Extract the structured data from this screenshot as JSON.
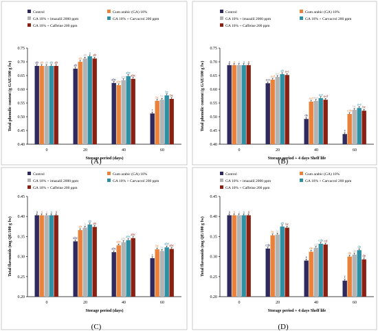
{
  "colors": {
    "Control": "#2e2a5e",
    "Gum arabic (GA) 10%": "#e9823a",
    "GA 10% + imazalil 2000 ppm": "#b3b3b3",
    "GA 10% + Carvacrol 200 ppm": "#2f8fa3",
    "GA 10% + Caffeine 200 ppm": "#8b2012"
  },
  "chart_data": [
    {
      "type": "bar",
      "panel_label": "(A)",
      "ylabel": "Total phenolic content (g GAE/100 g fw)",
      "xlabel": "Storage period (days)",
      "categories": [
        "0",
        "20",
        "40",
        "60"
      ],
      "ylim": [
        0.4,
        0.75
      ],
      "yticks": [
        "0.40",
        "0.45",
        "0.50",
        "0.55",
        "0.60",
        "0.65",
        "0.70",
        "0.75"
      ],
      "legend": [
        "Control",
        "Gum arabic (GA) 10%",
        "GA 10% + imazalil 2000 ppm",
        "GA 10% + Carvacrol 200 ppm",
        "GA 10% + Caffeine 200 ppm"
      ],
      "series": [
        {
          "name": "Control",
          "values": [
            0.685,
            0.675,
            0.623,
            0.512
          ],
          "labels": [
            "ab",
            "ab",
            "abc",
            "c"
          ]
        },
        {
          "name": "Gum arabic (GA) 10%",
          "values": [
            0.685,
            0.7,
            0.615,
            0.558
          ],
          "labels": [
            "ab",
            "ab",
            "abc",
            "bc"
          ]
        },
        {
          "name": "GA 10% + imazalil 2000 ppm",
          "values": [
            0.685,
            0.712,
            0.633,
            0.562
          ],
          "labels": [
            "ab",
            "ab",
            "abc",
            "bc"
          ]
        },
        {
          "name": "GA 10% + Carvacrol 200 ppm",
          "values": [
            0.685,
            0.72,
            0.648,
            0.578
          ],
          "labels": [
            "ab",
            "a",
            "abc",
            "bc"
          ]
        },
        {
          "name": "GA 10% + Caffeine 200 ppm",
          "values": [
            0.685,
            0.712,
            0.638,
            0.565
          ],
          "labels": [
            "ab",
            "ab",
            "abc",
            "bc"
          ]
        }
      ]
    },
    {
      "type": "bar",
      "panel_label": "(B)",
      "ylabel": "Total phenolic content (g GAE/100 g fw)",
      "xlabel": "Storage period + 4 days Shelf life",
      "categories": [
        "0",
        "20",
        "40",
        "60"
      ],
      "ylim": [
        0.4,
        0.75
      ],
      "yticks": [
        "0.40",
        "0.45",
        "0.50",
        "0.55",
        "0.60",
        "0.65",
        "0.70",
        "0.75"
      ],
      "legend": [
        "Control",
        "Gum arabic (GA) 10%",
        "GA 10% + imazalil 2000 ppm",
        "GA 10% + Carvacrol 200 ppm",
        "GA 10% + Caffeine 200 ppm"
      ],
      "series": [
        {
          "name": "Control",
          "values": [
            0.688,
            0.622,
            0.492,
            0.437
          ],
          "labels": [
            "a",
            "a-e",
            "de",
            "e"
          ]
        },
        {
          "name": "Gum arabic (GA) 10%",
          "values": [
            0.688,
            0.635,
            0.555,
            0.51
          ],
          "labels": [
            "a",
            "a-d",
            "a-d",
            "cde"
          ]
        },
        {
          "name": "GA 10% + imazalil 2000 ppm",
          "values": [
            0.688,
            0.645,
            0.558,
            0.525
          ],
          "labels": [
            "a",
            "a-c",
            "a-e",
            "bc"
          ]
        },
        {
          "name": "GA 10% + Carvacrol 200 ppm",
          "values": [
            0.688,
            0.655,
            0.568,
            0.532
          ],
          "labels": [
            "a",
            "ab",
            "a-e",
            "a-e"
          ]
        },
        {
          "name": "GA 10% + Caffeine 200 ppm",
          "values": [
            0.688,
            0.652,
            0.562,
            0.522
          ],
          "labels": [
            "a",
            "a-c",
            "a-d",
            "bc"
          ]
        }
      ]
    },
    {
      "type": "bar",
      "panel_label": "(C)",
      "ylabel": "Total flavonoids (mg QE/100 g fw)",
      "xlabel": "Storage period (days)",
      "categories": [
        "0",
        "20",
        "40",
        "60"
      ],
      "ylim": [
        0.2,
        0.45
      ],
      "yticks": [
        "0.20",
        "0.25",
        "0.30",
        "0.35",
        "0.40",
        "0.45"
      ],
      "legend": [
        "Control",
        "Gum arabic (GA) 10%",
        "GA 10% + imazalil 2000 ppm",
        "GA 10% + Carvacrol 200 ppm",
        "GA 10% + Caffeine 200 ppm"
      ],
      "series": [
        {
          "name": "Control",
          "values": [
            0.403,
            0.338,
            0.311,
            0.296
          ],
          "labels": [
            "a",
            "abc",
            "abc",
            "c"
          ]
        },
        {
          "name": "Gum arabic (GA) 10%",
          "values": [
            0.403,
            0.366,
            0.328,
            0.318
          ],
          "labels": [
            "a",
            "ab",
            "abc",
            "bc"
          ]
        },
        {
          "name": "GA 10% + imazalil 2000 ppm",
          "values": [
            0.403,
            0.372,
            0.336,
            0.314
          ],
          "labels": [
            "a",
            "b",
            "abc",
            "bc"
          ]
        },
        {
          "name": "GA 10% + Carvacrol 200 ppm",
          "values": [
            0.403,
            0.38,
            0.341,
            0.323
          ],
          "labels": [
            "a",
            "ab",
            "abc",
            "abc"
          ]
        },
        {
          "name": "GA 10% + Caffeine 200 ppm",
          "values": [
            0.403,
            0.374,
            0.346,
            0.319
          ],
          "labels": [
            "a",
            "ab",
            "abc",
            "abc"
          ]
        }
      ]
    },
    {
      "type": "bar",
      "panel_label": "(D)",
      "ylabel": "Total flavonoids (mg QE/100 g fw)",
      "xlabel": "Storage period + 4 days Shelf life",
      "categories": [
        "0",
        "20",
        "40",
        "60"
      ],
      "ylim": [
        0.2,
        0.45
      ],
      "yticks": [
        "0.20",
        "0.25",
        "0.30",
        "0.35",
        "0.40",
        "0.45"
      ],
      "legend": [
        "Control",
        "Gum arabic (GA) 10%",
        "GA 10% + imazalil 2000 ppm",
        "GA 10% + Carvacrol 200 ppm",
        "GA 10% + Caffeine 200 ppm"
      ],
      "series": [
        {
          "name": "Control",
          "values": [
            0.403,
            0.32,
            0.29,
            0.24
          ],
          "labels": [
            "a",
            "cde",
            "e",
            "f"
          ]
        },
        {
          "name": "Gum arabic (GA) 10%",
          "values": [
            0.403,
            0.353,
            0.312,
            0.3
          ],
          "labels": [
            "a",
            "bc",
            "de",
            "de"
          ]
        },
        {
          "name": "GA 10% + imazalil 2000 ppm",
          "values": [
            0.403,
            0.355,
            0.322,
            0.305
          ],
          "labels": [
            "a",
            "bc",
            "cd",
            "de"
          ]
        },
        {
          "name": "GA 10% + Carvacrol 200 ppm",
          "values": [
            0.403,
            0.375,
            0.332,
            0.316
          ],
          "labels": [
            "a",
            "ab",
            "cde",
            "de"
          ]
        },
        {
          "name": "GA 10% + Caffeine 200 ppm",
          "values": [
            0.403,
            0.372,
            0.33,
            0.293
          ],
          "labels": [
            "a",
            "bc",
            "cd",
            "de"
          ]
        }
      ]
    }
  ]
}
